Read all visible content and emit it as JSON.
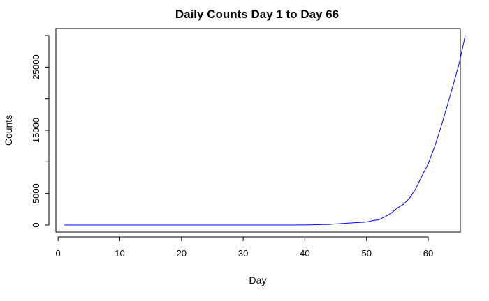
{
  "chart_data": {
    "type": "line",
    "title": "Daily Counts Day 1 to Day 66",
    "xlabel": "Day",
    "ylabel": "Counts",
    "xlim": [
      1,
      66
    ],
    "ylim": [
      0,
      30000
    ],
    "x_ticks": [
      0,
      10,
      20,
      30,
      40,
      50,
      60
    ],
    "y_ticks": [
      0,
      5000,
      15000,
      25000
    ],
    "y_minor_ticks": [
      10000,
      20000,
      30000
    ],
    "grid": false,
    "series": [
      {
        "color": "#0000ff",
        "x": [
          1,
          2,
          3,
          4,
          5,
          6,
          7,
          8,
          9,
          10,
          11,
          12,
          13,
          14,
          15,
          16,
          17,
          18,
          19,
          20,
          21,
          22,
          23,
          24,
          25,
          26,
          27,
          28,
          29,
          30,
          31,
          32,
          33,
          34,
          35,
          36,
          37,
          38,
          39,
          40,
          41,
          42,
          43,
          44,
          45,
          46,
          47,
          48,
          49,
          50,
          51,
          52,
          53,
          54,
          55,
          56,
          57,
          58,
          59,
          60,
          61,
          62,
          63,
          64,
          65,
          66
        ],
        "values": [
          0,
          0,
          0,
          0,
          0,
          0,
          0,
          0,
          0,
          0,
          0,
          0,
          0,
          0,
          0,
          0,
          0,
          0,
          0,
          0,
          0,
          0,
          0,
          0,
          0,
          0,
          0,
          0,
          0,
          0,
          0,
          0,
          0,
          0,
          0,
          0,
          0,
          0,
          10,
          20,
          30,
          50,
          80,
          100,
          180,
          240,
          300,
          360,
          420,
          480,
          700,
          850,
          1300,
          1900,
          2700,
          3300,
          4300,
          5800,
          7800,
          9700,
          12300,
          15300,
          18600,
          22000,
          25500,
          30000
        ]
      }
    ]
  }
}
